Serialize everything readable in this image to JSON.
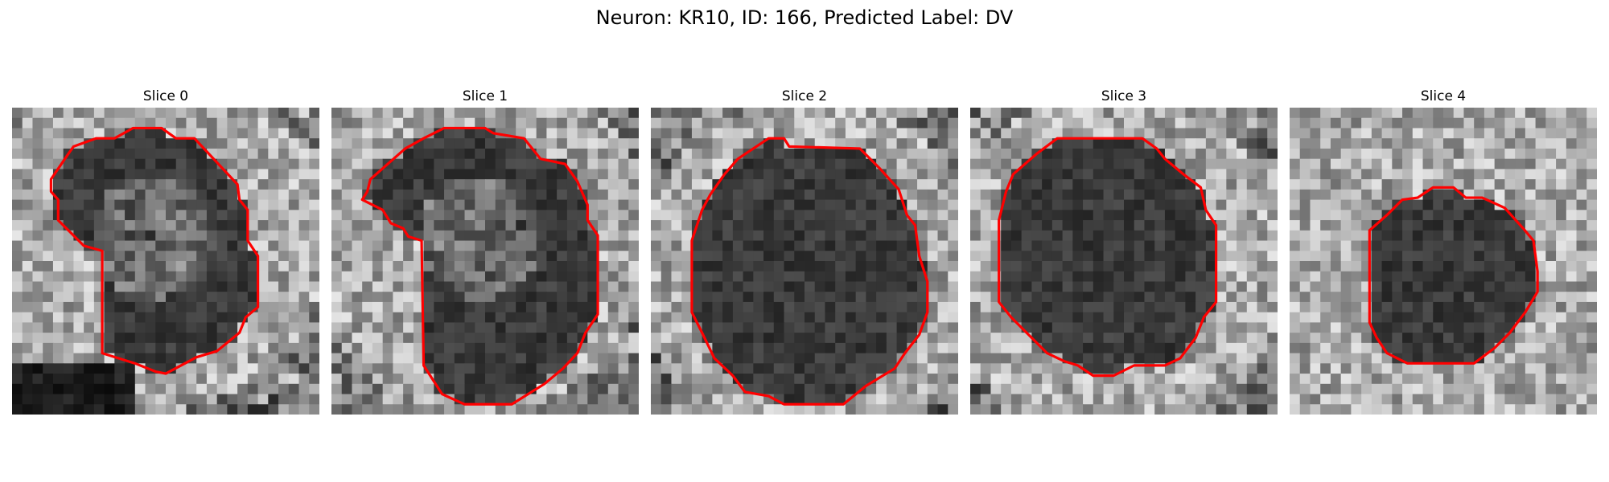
{
  "figure": {
    "title": "Neuron: KR10, ID: 166, Predicted Label: DV"
  },
  "colors": {
    "contour": "#ff0000",
    "background": "#ffffff"
  },
  "panels": [
    {
      "title": "Slice 0",
      "grid": 30,
      "seed": 11,
      "profile": "bright-ring-irregular"
    },
    {
      "title": "Slice 1",
      "grid": 30,
      "seed": 23,
      "profile": "bright-ring-irregular"
    },
    {
      "title": "Slice 2",
      "grid": 30,
      "seed": 37,
      "profile": "ring"
    },
    {
      "title": "Slice 3",
      "grid": 30,
      "seed": 41,
      "profile": "ring"
    },
    {
      "title": "Slice 4",
      "grid": 30,
      "seed": 53,
      "profile": "small-dark"
    }
  ]
}
